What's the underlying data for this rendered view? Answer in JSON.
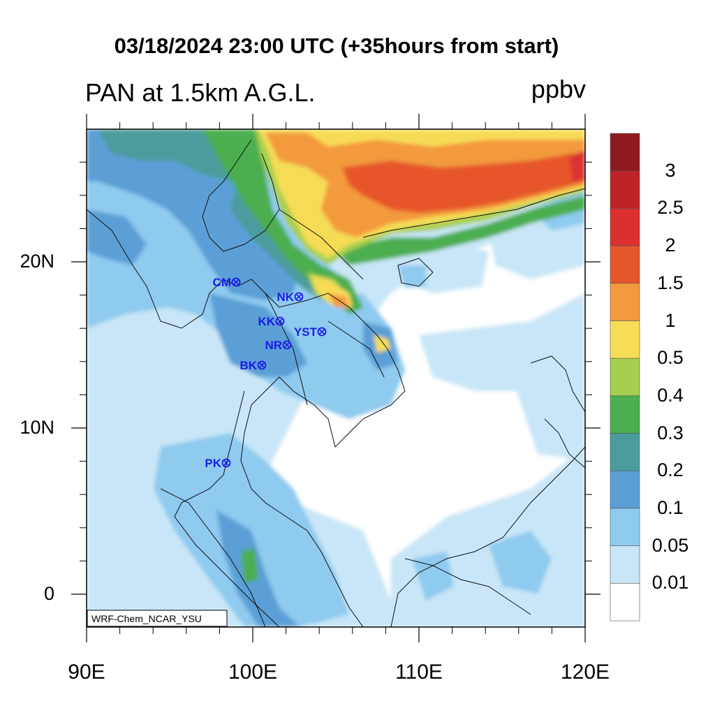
{
  "title": "03/18/2024 23:00 UTC (+35hours from start)",
  "left_string": "PAN at 1.5km A.G.L.",
  "units": "ppbv",
  "credit": "WRF-Chem_NCAR_YSU",
  "axes": {
    "x_ticks": [
      "90E",
      "100E",
      "110E",
      "120E"
    ],
    "y_ticks": [
      "20N",
      "10N",
      "0"
    ]
  },
  "colorbar": {
    "labels": [
      "3",
      "2.5",
      "2",
      "1.5",
      "1",
      "0.5",
      "0.4",
      "0.3",
      "0.2",
      "0.1",
      "0.05",
      "0.01"
    ],
    "colors": [
      "#8e1a1f",
      "#be2327",
      "#dc3030",
      "#e6562b",
      "#f39a3e",
      "#f6dc57",
      "#a7cf4f",
      "#4bae4f",
      "#4b9c9c",
      "#5b9fd6",
      "#8fcaef",
      "#c8e6f7",
      "#ffffff"
    ]
  },
  "stations": [
    {
      "label": "CM"
    },
    {
      "label": "NK"
    },
    {
      "label": "KK"
    },
    {
      "label": "YST"
    },
    {
      "label": "NR"
    },
    {
      "label": "BK"
    },
    {
      "label": "PK"
    }
  ]
}
